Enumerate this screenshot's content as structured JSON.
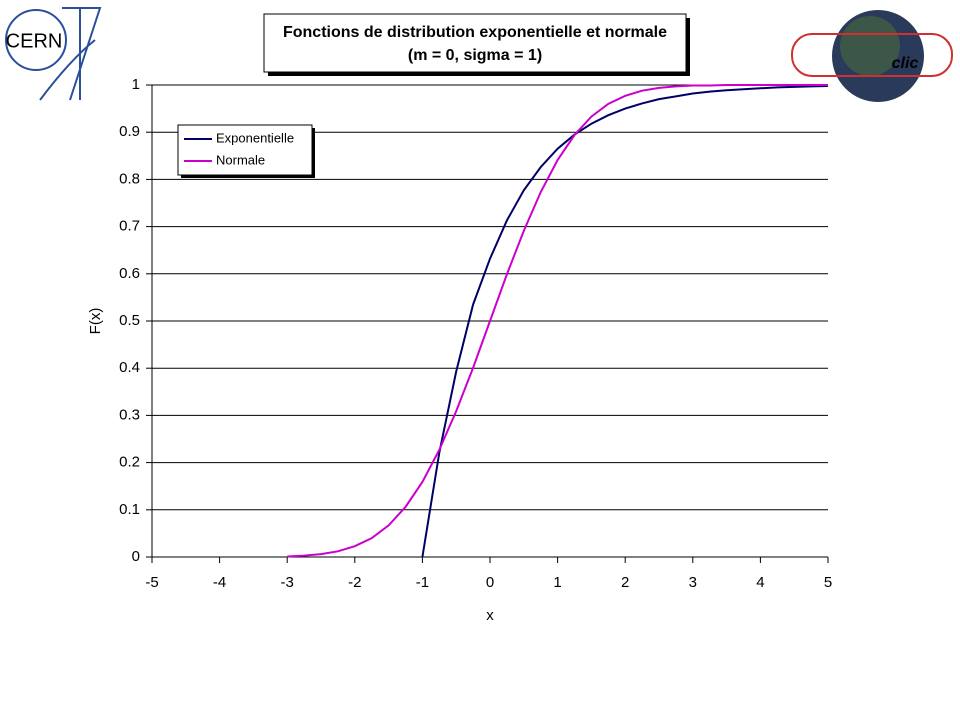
{
  "logos": {
    "cern": "CERN",
    "clic": "clic"
  },
  "chart_data": {
    "type": "line",
    "title": "Fonctions de distribution exponentielle et normale",
    "subtitle": "(m = 0, sigma = 1)",
    "x_label": "x",
    "y_label": "F(x)",
    "x": [
      -3,
      -2.75,
      -2.5,
      -2.25,
      -2,
      -1.75,
      -1.5,
      -1.25,
      -1,
      -0.75,
      -0.5,
      -0.25,
      0,
      0.25,
      0.5,
      0.75,
      1,
      1.25,
      1.5,
      1.75,
      2,
      2.25,
      2.5,
      2.75,
      3,
      3.25,
      3.5,
      3.75,
      4,
      4.25,
      4.5,
      4.75,
      5
    ],
    "series": [
      {
        "name": "Exponentielle",
        "color": "#000066",
        "values": [
          null,
          null,
          null,
          null,
          null,
          null,
          null,
          null,
          0,
          0.221,
          0.393,
          0.535,
          0.632,
          0.713,
          0.777,
          0.826,
          0.865,
          0.895,
          0.918,
          0.936,
          0.95,
          0.961,
          0.97,
          0.976,
          0.982,
          0.986,
          0.989,
          0.991,
          0.993,
          0.995,
          0.996,
          0.997,
          0.998
        ]
      },
      {
        "name": "Normale",
        "color": "#cc00cc",
        "values": [
          0.001,
          0.003,
          0.006,
          0.012,
          0.023,
          0.04,
          0.067,
          0.106,
          0.159,
          0.227,
          0.309,
          0.401,
          0.5,
          0.599,
          0.691,
          0.773,
          0.841,
          0.894,
          0.933,
          0.96,
          0.977,
          0.988,
          0.994,
          0.997,
          0.999,
          0.999,
          1,
          1,
          1,
          1,
          1,
          1,
          1
        ]
      }
    ],
    "xlim": [
      -5,
      5
    ],
    "xticks": [
      -5,
      -4,
      -3,
      -2,
      -1,
      0,
      1,
      2,
      3,
      4,
      5
    ],
    "ylim": [
      0,
      1
    ],
    "yticks": [
      0,
      0.1,
      0.2,
      0.3,
      0.4,
      0.5,
      0.6,
      0.7,
      0.8,
      0.9,
      1
    ],
    "grid": true,
    "legend": "top-left"
  }
}
